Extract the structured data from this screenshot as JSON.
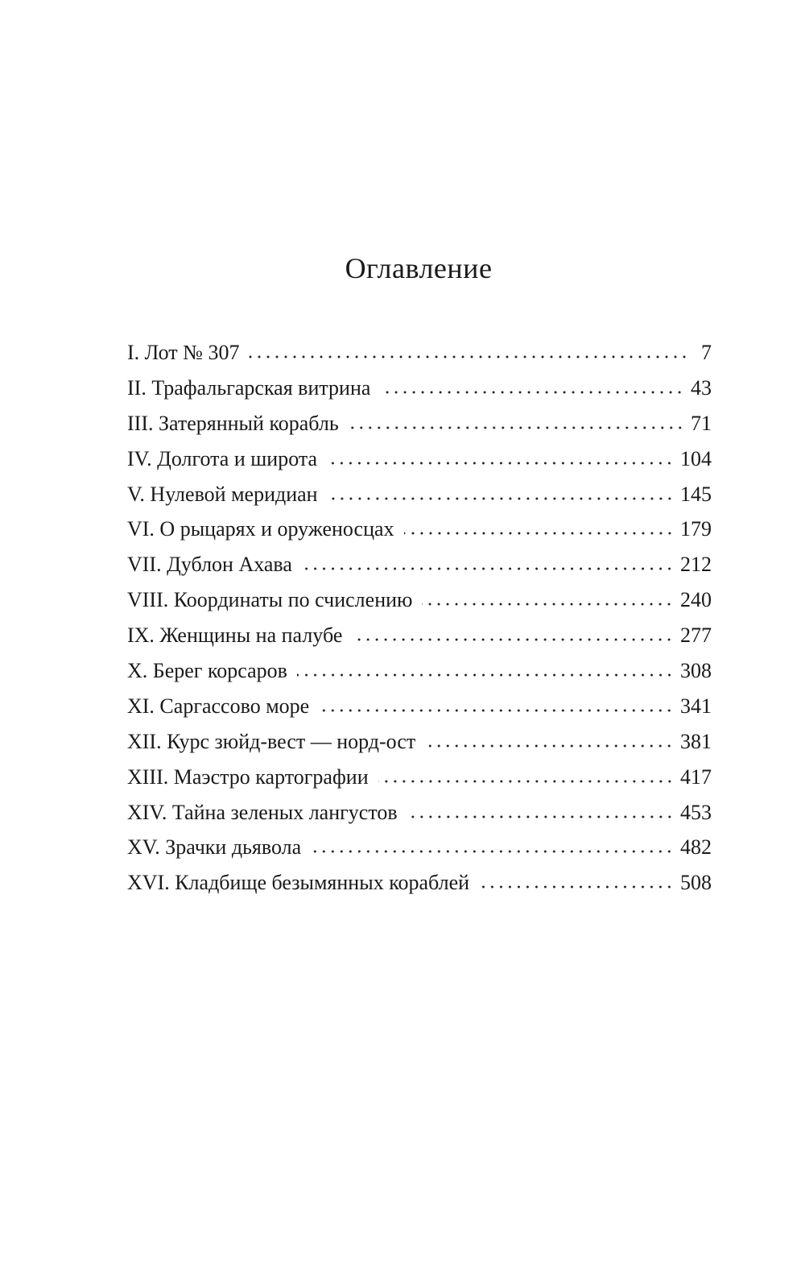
{
  "title": "Оглавление",
  "entries": [
    {
      "label": "I. Лот № 307",
      "page": "7"
    },
    {
      "label": "II. Трафальгарская витрина",
      "page": "43"
    },
    {
      "label": "III. Затерянный корабль",
      "page": "71"
    },
    {
      "label": "IV. Долгота и широта",
      "page": "104"
    },
    {
      "label": "V. Нулевой меридиан",
      "page": "145"
    },
    {
      "label": "VI. О рыцарях и оруженосцах",
      "page": "179"
    },
    {
      "label": "VII. Дублон Ахава",
      "page": "212"
    },
    {
      "label": "VIII. Координаты по счислению",
      "page": "240"
    },
    {
      "label": "IX. Женщины на палубе",
      "page": "277"
    },
    {
      "label": "X. Берег корсаров",
      "page": "308"
    },
    {
      "label": "XI. Саргассово море",
      "page": "341"
    },
    {
      "label": "XII. Курс зюйд-вест — норд-ост",
      "page": "381"
    },
    {
      "label": "XIII. Маэстро картографии",
      "page": "417"
    },
    {
      "label": "XIV. Тайна зеленых лангустов",
      "page": "453"
    },
    {
      "label": "XV. Зрачки дьявола",
      "page": "482"
    },
    {
      "label": "XVI. Кладбище безымянных кораблей",
      "page": "508"
    }
  ]
}
